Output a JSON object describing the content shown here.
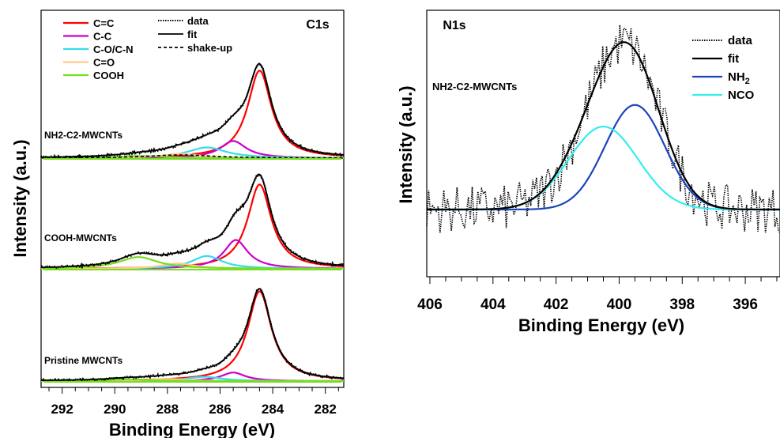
{
  "chart_data": [
    {
      "type": "line",
      "panel_label": "C1s",
      "xlabel": "Binding Energy (eV)",
      "ylabel": "Intensity (a.u.)",
      "xlim": [
        292.8,
        281.3
      ],
      "x_ticks": [
        292,
        290,
        288,
        286,
        284,
        282
      ],
      "x_tick_labels": [
        "292",
        "290",
        "288",
        "286",
        "284",
        "282"
      ],
      "legend": {
        "placement": "top-left",
        "items": [
          {
            "label": "C=C",
            "color": "#ff0000",
            "style": "solid"
          },
          {
            "label": "C-C",
            "color": "#cc00cc",
            "style": "solid"
          },
          {
            "label": "C-O/C-N",
            "color": "#33ddee",
            "style": "solid"
          },
          {
            "label": "C=O",
            "color": "#ffcc88",
            "style": "solid"
          },
          {
            "label": "COOH",
            "color": "#77dd22",
            "style": "solid"
          },
          {
            "label": "data",
            "color": "#000000",
            "style": "dotted"
          },
          {
            "label": "fit",
            "color": "#000000",
            "style": "solid"
          },
          {
            "label": "shake-up",
            "color": "#000000",
            "style": "dashed"
          }
        ]
      },
      "samples": [
        {
          "label": "NH2-C2-MWCNTs",
          "components": [
            {
              "name": "C=C",
              "color": "#ff0000",
              "center": 284.5,
              "height": 0.82,
              "width": 0.55
            },
            {
              "name": "C-C",
              "color": "#cc00cc",
              "center": 285.5,
              "height": 0.16,
              "width": 0.6
            },
            {
              "name": "C-O/C-N",
              "color": "#33ddee",
              "center": 286.5,
              "height": 0.1,
              "width": 0.9
            },
            {
              "name": "C=O",
              "color": "#ffcc88",
              "center": 287.5,
              "height": 0.04,
              "width": 0.9
            },
            {
              "name": "COOH",
              "color": "#77dd22",
              "center": 289.0,
              "height": 0.02,
              "width": 1.0
            },
            {
              "name": "shake-up",
              "color": "#000000",
              "center": 287.5,
              "height": 0.03,
              "width": 1.5
            }
          ]
        },
        {
          "label": "COOH-MWCNTs",
          "components": [
            {
              "name": "C=C",
              "color": "#ff0000",
              "center": 284.5,
              "height": 0.79,
              "width": 0.55
            },
            {
              "name": "C-C",
              "color": "#cc00cc",
              "center": 285.4,
              "height": 0.27,
              "width": 0.55
            },
            {
              "name": "C-O/C-N",
              "color": "#33ddee",
              "center": 286.5,
              "height": 0.12,
              "width": 0.7
            },
            {
              "name": "C=O",
              "color": "#ffcc88",
              "center": 287.6,
              "height": 0.05,
              "width": 0.8
            },
            {
              "name": "COOH",
              "color": "#77dd22",
              "center": 289.1,
              "height": 0.11,
              "width": 0.9
            }
          ]
        },
        {
          "label": "Pristine MWCNTs",
          "components": [
            {
              "name": "C=C",
              "color": "#ff0000",
              "center": 284.5,
              "height": 0.84,
              "width": 0.55
            },
            {
              "name": "C-C",
              "color": "#cc00cc",
              "center": 285.5,
              "height": 0.08,
              "width": 0.55
            },
            {
              "name": "C-O/C-N",
              "color": "#33ddee",
              "center": 286.6,
              "height": 0.04,
              "width": 0.8
            },
            {
              "name": "C=O",
              "color": "#ffcc88",
              "center": 288.0,
              "height": 0.02,
              "width": 0.9
            },
            {
              "name": "COOH",
              "color": "#77dd22",
              "center": 289.5,
              "height": 0.015,
              "width": 1.0
            }
          ]
        }
      ]
    },
    {
      "type": "line",
      "panel_label": "N1s",
      "sample_label": "NH2-C2-MWCNTs",
      "xlabel": "Binding Energy (eV)",
      "ylabel": "Intensity (a.u.)",
      "xlim": [
        406.1,
        394.9
      ],
      "x_ticks": [
        406,
        404,
        402,
        400,
        398,
        396
      ],
      "x_tick_labels": [
        "406",
        "404",
        "402",
        "400",
        "398",
        "396"
      ],
      "legend": {
        "placement": "top-right",
        "items": [
          {
            "label": "data",
            "color": "#000000",
            "style": "dotted"
          },
          {
            "label": "fit",
            "color": "#000000",
            "style": "solid"
          },
          {
            "label": "NH",
            "subscript": "2",
            "color": "#1a44bb",
            "style": "solid"
          },
          {
            "label": "NCO",
            "color": "#33eeee",
            "style": "solid"
          }
        ]
      },
      "components": [
        {
          "name": "NH2",
          "color": "#1a44bb",
          "center": 399.5,
          "height": 0.58,
          "width": 0.95
        },
        {
          "name": "NCO",
          "color": "#33eeee",
          "center": 400.5,
          "height": 0.46,
          "width": 1.1
        }
      ],
      "noise_amplitude": 0.13
    }
  ]
}
